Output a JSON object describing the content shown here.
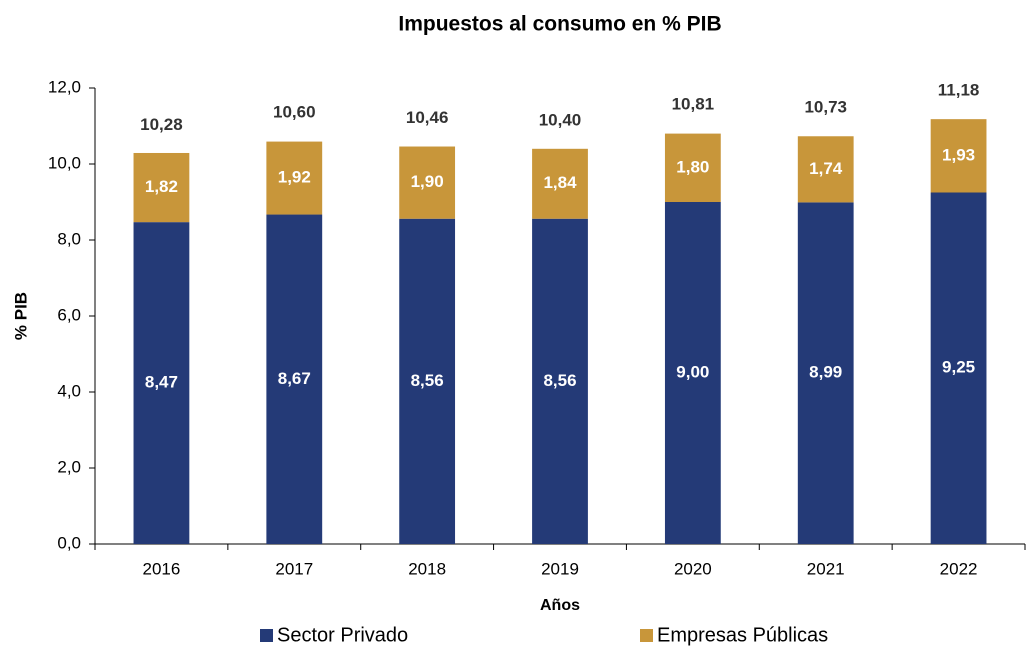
{
  "chart_data": {
    "type": "stacked_bar",
    "title": "Impuestos al consumo en % PIB",
    "x_label": "Años",
    "y_label": "% PIB",
    "categories": [
      "2016",
      "2017",
      "2018",
      "2019",
      "2020",
      "2021",
      "2022"
    ],
    "series": [
      {
        "name": "Sector Privado",
        "color": "#243a77",
        "values": [
          8.47,
          8.67,
          8.56,
          8.56,
          9.0,
          8.99,
          9.25
        ],
        "value_labels": [
          "8,47",
          "8,67",
          "8,56",
          "8,56",
          "9,00",
          "8,99",
          "9,25"
        ]
      },
      {
        "name": "Empresas Públicas",
        "color": "#c8963a",
        "values": [
          1.82,
          1.92,
          1.9,
          1.84,
          1.8,
          1.74,
          1.93
        ],
        "value_labels": [
          "1,82",
          "1,92",
          "1,90",
          "1,84",
          "1,80",
          "1,74",
          "1,93"
        ]
      }
    ],
    "totals": [
      10.28,
      10.6,
      10.46,
      10.4,
      10.81,
      10.73,
      11.18
    ],
    "total_labels": [
      "10,28",
      "10,60",
      "10,46",
      "10,40",
      "10,81",
      "10,73",
      "11,18"
    ],
    "ylim": [
      0,
      12
    ],
    "yticks": [
      {
        "value": 0,
        "label": "0,0"
      },
      {
        "value": 2,
        "label": "2,0"
      },
      {
        "value": 4,
        "label": "4,0"
      },
      {
        "value": 6,
        "label": "6,0"
      },
      {
        "value": 8,
        "label": "8,0"
      },
      {
        "value": 10,
        "label": "10,0"
      },
      {
        "value": 12,
        "label": "12,0"
      }
    ],
    "legend": "bottom"
  }
}
